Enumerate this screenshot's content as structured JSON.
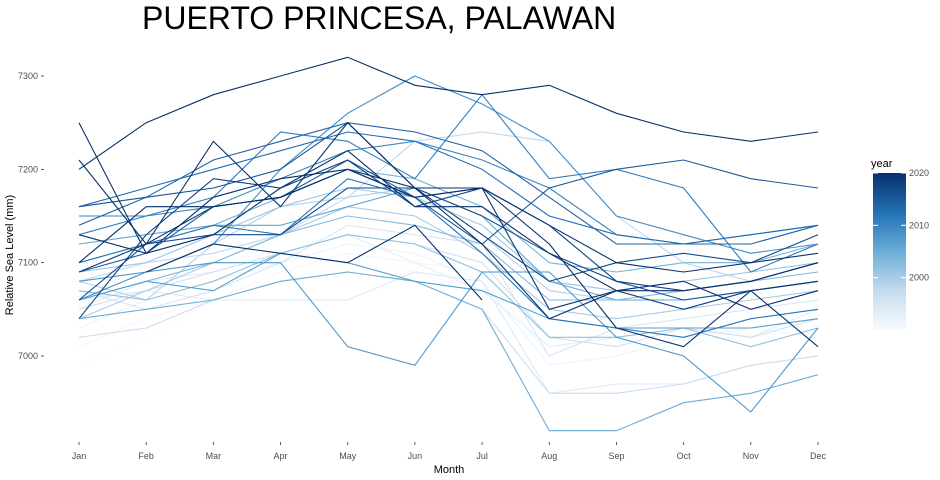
{
  "chart_data": {
    "type": "line",
    "title": "PUERTO PRINCESA, PALAWAN",
    "xlabel": "Month",
    "ylabel": "Relative Sea Level (mm)",
    "categories": [
      "Jan",
      "Feb",
      "Mar",
      "Apr",
      "May",
      "Jun",
      "Jul",
      "Aug",
      "Sep",
      "Oct",
      "Nov",
      "Dec"
    ],
    "y_ticks": [
      7000,
      7100,
      7200,
      7300
    ],
    "ylim": [
      6930,
      7330
    ],
    "grid": false,
    "legend": {
      "title": "year",
      "position": "right",
      "type": "continuous colorbar",
      "range": [
        1990,
        2020
      ],
      "ticks": [
        2000,
        2010,
        2020
      ],
      "color_low": "#f7fbff",
      "color_high": "#08306b"
    },
    "series": [
      {
        "year": 1990,
        "values": [
          6990,
          7020,
          7060,
          7080,
          7100,
          7090,
          7070,
          7030,
          7050,
          7040,
          7020,
          7030
        ]
      },
      {
        "year": 1991,
        "values": [
          7010,
          7040,
          7060,
          7090,
          7110,
          7100,
          7090,
          7000,
          7030,
          7010,
          7030,
          7020
        ]
      },
      {
        "year": 1992,
        "values": [
          7030,
          7060,
          7080,
          7100,
          7120,
          7110,
          7080,
          6990,
          7000,
          7020,
          7030,
          7040
        ]
      },
      {
        "year": 1993,
        "values": [
          7050,
          7080,
          7090,
          7110,
          7130,
          7100,
          7070,
          7010,
          7020,
          7030,
          7020,
          7050
        ]
      },
      {
        "year": 1994,
        "values": [
          7060,
          7070,
          7060,
          7060,
          7060,
          7090,
          7080,
          6960,
          6970,
          6970,
          6990,
          7000
        ]
      },
      {
        "year": 1995,
        "values": [
          7070,
          7050,
          7070,
          7100,
          7140,
          7130,
          7120,
          7000,
          7030,
          7040,
          7050,
          7060
        ]
      },
      {
        "year": 1996,
        "values": [
          7050,
          7070,
          7090,
          7110,
          7130,
          7120,
          7100,
          7020,
          7010,
          7030,
          7020,
          7040
        ]
      },
      {
        "year": 1997,
        "values": [
          7020,
          7030,
          7060,
          7080,
          7090,
          7080,
          7050,
          6960,
          6960,
          6970,
          6990,
          7000
        ]
      },
      {
        "year": 1998,
        "values": [
          7080,
          7100,
          7110,
          7130,
          7170,
          7230,
          7240,
          7230,
          7150,
          7100,
          7080,
          7090
        ]
      },
      {
        "year": 1999,
        "values": [
          7080,
          7060,
          7120,
          7160,
          7170,
          7180,
          7130,
          7070,
          7060,
          7060,
          7070,
          7080
        ]
      },
      {
        "year": 2000,
        "values": [
          7040,
          7070,
          7100,
          7130,
          7160,
          7150,
          7110,
          7050,
          7040,
          7050,
          7060,
          7070
        ]
      },
      {
        "year": 2001,
        "values": [
          7090,
          7100,
          7130,
          7160,
          7180,
          7170,
          7140,
          7080,
          7070,
          7080,
          7090,
          7100
        ]
      },
      {
        "year": 2002,
        "values": [
          7070,
          7060,
          7080,
          7110,
          7130,
          7120,
          7090,
          7020,
          7020,
          7030,
          7010,
          7030
        ]
      },
      {
        "year": 2003,
        "values": [
          7060,
          7080,
          7100,
          7130,
          7150,
          7140,
          7120,
          7060,
          7060,
          7070,
          7080,
          7090
        ]
      },
      {
        "year": 2004,
        "values": [
          7100,
          7120,
          7140,
          7170,
          7200,
          7190,
          7160,
          7100,
          7090,
          7100,
          7100,
          7120
        ]
      },
      {
        "year": 2005,
        "values": [
          7040,
          7050,
          7060,
          7080,
          7090,
          7080,
          7050,
          6920,
          6920,
          6950,
          6960,
          6980
        ]
      },
      {
        "year": 2006,
        "values": [
          7120,
          7130,
          7140,
          7140,
          7160,
          7180,
          7150,
          7080,
          7060,
          7060,
          7070,
          7080
        ]
      },
      {
        "year": 2007,
        "values": [
          7060,
          7080,
          7070,
          7110,
          7100,
          7080,
          7070,
          7040,
          7030,
          7030,
          7030,
          7040
        ]
      },
      {
        "year": 2008,
        "values": [
          7080,
          7090,
          7100,
          7100,
          7010,
          6990,
          7090,
          7090,
          7020,
          7000,
          6940,
          7030
        ]
      },
      {
        "year": 2009,
        "values": [
          7060,
          7090,
          7120,
          7200,
          7260,
          7300,
          7270,
          7230,
          7150,
          7130,
          7110,
          7120
        ]
      },
      {
        "year": 2010,
        "values": [
          7150,
          7150,
          7160,
          7190,
          7220,
          7230,
          7210,
          7180,
          7130,
          7120,
          7130,
          7140
        ]
      },
      {
        "year": 2011,
        "values": [
          7130,
          7150,
          7170,
          7240,
          7230,
          7190,
          7280,
          7190,
          7200,
          7180,
          7090,
          7120
        ]
      },
      {
        "year": 2012,
        "values": [
          7100,
          7120,
          7140,
          7130,
          7190,
          7170,
          7110,
          7040,
          7030,
          7020,
          7040,
          7050
        ]
      },
      {
        "year": 2013,
        "values": [
          7160,
          7180,
          7200,
          7220,
          7240,
          7230,
          7200,
          7150,
          7130,
          7120,
          7130,
          7140
        ]
      },
      {
        "year": 2014,
        "values": [
          7140,
          7170,
          7210,
          7230,
          7250,
          7240,
          7220,
          7170,
          7120,
          7120,
          7120,
          7140
        ]
      },
      {
        "year": 2015,
        "values": [
          7090,
          7110,
          7160,
          7170,
          7210,
          7170,
          7120,
          7180,
          7200,
          7210,
          7190,
          7180
        ]
      },
      {
        "year": 2016,
        "values": [
          7160,
          7170,
          7180,
          7200,
          7250,
          7180,
          7150,
          7110,
          7080,
          7060,
          7070,
          7080
        ]
      },
      {
        "year": 2017,
        "values": [
          7060,
          7120,
          7130,
          7130,
          7180,
          7180,
          7130,
          7080,
          7100,
          7110,
          7100,
          7130
        ]
      },
      {
        "year": 2018,
        "values": [
          7040,
          7130,
          7190,
          7180,
          7210,
          7160,
          7180,
          7140,
          7080,
          7070,
          7080,
          7100
        ]
      },
      {
        "year": 2019,
        "values": [
          7090,
          7120,
          7160,
          7170,
          7200,
          7170,
          7180,
          7050,
          7070,
          7050,
          7070,
          7080
        ]
      },
      {
        "year": 2020,
        "values": [
          7250,
          7110,
          7170,
          7190,
          7200,
          7170,
          7180,
          7140,
          7100,
          7090,
          7100,
          7110
        ]
      },
      {
        "year": 2021,
        "values": [
          7100,
          7160,
          7160,
          7170,
          7200,
          7180,
          7120,
          7040,
          7070,
          7080,
          7050,
          7070
        ]
      },
      {
        "year": 2022,
        "values": [
          7210,
          7120,
          7230,
          7160,
          7250,
          7180,
          7180,
          7120,
          7030,
          7010,
          7070,
          7010
        ]
      },
      {
        "year": 2023,
        "values": [
          7200,
          7250,
          7280,
          7300,
          7320,
          7290,
          7280,
          7290,
          7260,
          7240,
          7230,
          7240
        ]
      },
      {
        "year": 2024,
        "values": [
          7130,
          7110,
          7130,
          7180,
          7220,
          7160,
          7160,
          7110,
          7070,
          7070,
          7080,
          7100
        ]
      },
      {
        "year": 2025,
        "values": [
          null,
          7090,
          7120,
          7110,
          7100,
          7140,
          7060,
          null,
          null,
          null,
          null,
          null
        ]
      }
    ]
  }
}
